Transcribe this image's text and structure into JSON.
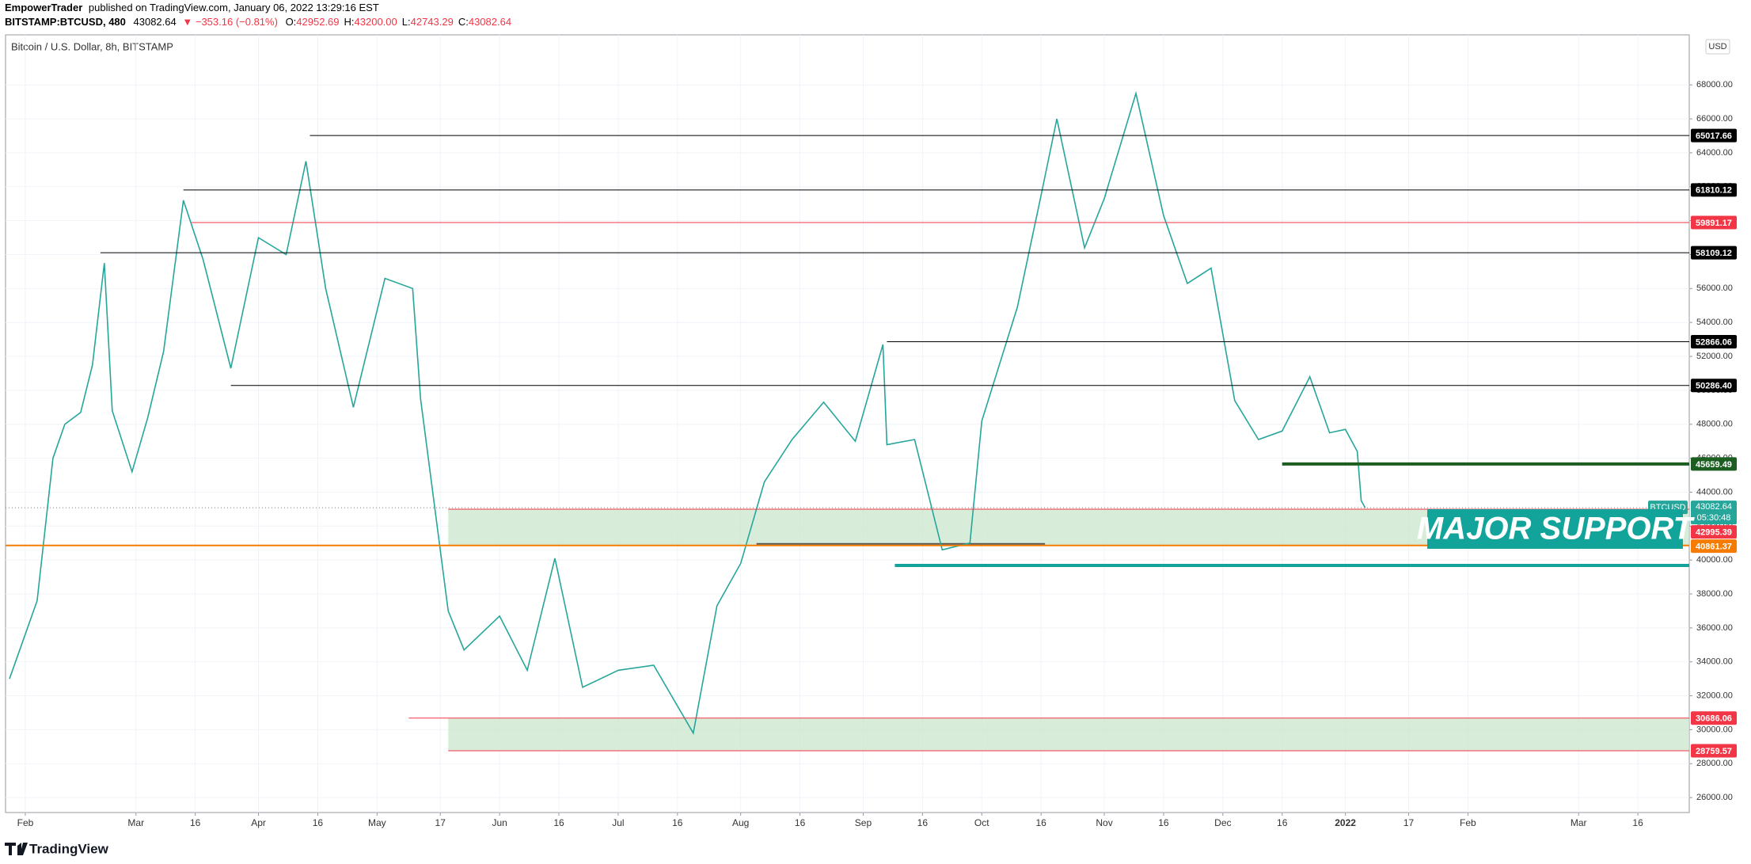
{
  "header": {
    "publisher": "EmpowerTrader",
    "published": "published on TradingView.com, January 06, 2022 13:29:16 EST",
    "symbol": "BITSTAMP:BTCUSD, 480",
    "price": "43082.64",
    "change": "▼ −353.16 (−0.81%)",
    "ohlc": [
      {
        "label": "O:",
        "value": "42952.69"
      },
      {
        "label": "H:",
        "value": "43200.00"
      },
      {
        "label": "L:",
        "value": "42743.29"
      },
      {
        "label": "C:",
        "value": "43082.64"
      }
    ]
  },
  "chart_data": {
    "type": "line",
    "subtitle": "Bitcoin / U.S. Dollar, 8h, BITSTAMP",
    "currency": "USD",
    "color": "#26a69a",
    "x": [
      "2021-01-28",
      "2021-02-04",
      "2021-02-08",
      "2021-02-11",
      "2021-02-15",
      "2021-02-18",
      "2021-02-21",
      "2021-02-23",
      "2021-02-28",
      "2021-03-04",
      "2021-03-08",
      "2021-03-13",
      "2021-03-18",
      "2021-03-25",
      "2021-04-01",
      "2021-04-08",
      "2021-04-13",
      "2021-04-18",
      "2021-04-25",
      "2021-05-03",
      "2021-05-10",
      "2021-05-12",
      "2021-05-19",
      "2021-05-23",
      "2021-06-01",
      "2021-06-08",
      "2021-06-15",
      "2021-06-22",
      "2021-07-01",
      "2021-07-10",
      "2021-07-20",
      "2021-07-26",
      "2021-08-01",
      "2021-08-07",
      "2021-08-14",
      "2021-08-22",
      "2021-08-30",
      "2021-09-06",
      "2021-09-07",
      "2021-09-14",
      "2021-09-21",
      "2021-09-28",
      "2021-10-01",
      "2021-10-10",
      "2021-10-16",
      "2021-10-20",
      "2021-10-27",
      "2021-11-01",
      "2021-11-09",
      "2021-11-16",
      "2021-11-22",
      "2021-11-28",
      "2021-12-04",
      "2021-12-10",
      "2021-12-16",
      "2021-12-23",
      "2021-12-28",
      "2022-01-01",
      "2022-01-04",
      "2022-01-05",
      "2022-01-06"
    ],
    "values": [
      33000,
      37600,
      46000,
      48000,
      48700,
      51500,
      57500,
      48800,
      45200,
      48400,
      52300,
      61200,
      57700,
      51300,
      59000,
      58000,
      63500,
      56000,
      49000,
      56600,
      56000,
      49500,
      37000,
      34700,
      36700,
      33500,
      40100,
      32500,
      33500,
      33800,
      29800,
      37300,
      39800,
      44600,
      47100,
      49300,
      47000,
      52700,
      46800,
      47100,
      40600,
      41000,
      48200,
      54900,
      61500,
      66000,
      58400,
      61300,
      67500,
      60300,
      56300,
      57200,
      49400,
      47100,
      47600,
      50800,
      47500,
      47700,
      46400,
      43500,
      43082.64
    ],
    "xlim": [
      "2021-01-27",
      "2022-03-29"
    ],
    "xticks": [
      {
        "value": "2021-02-01",
        "label": "Feb"
      },
      {
        "value": "2021-03-01",
        "label": "Mar"
      },
      {
        "value": "2021-03-16",
        "label": "16"
      },
      {
        "value": "2021-04-01",
        "label": "Apr"
      },
      {
        "value": "2021-04-16",
        "label": "16"
      },
      {
        "value": "2021-05-01",
        "label": "May"
      },
      {
        "value": "2021-05-17",
        "label": "17"
      },
      {
        "value": "2021-06-01",
        "label": "Jun"
      },
      {
        "value": "2021-06-16",
        "label": "16"
      },
      {
        "value": "2021-07-01",
        "label": "Jul"
      },
      {
        "value": "2021-07-16",
        "label": "16"
      },
      {
        "value": "2021-08-01",
        "label": "Aug"
      },
      {
        "value": "2021-08-16",
        "label": "16"
      },
      {
        "value": "2021-09-01",
        "label": "Sep"
      },
      {
        "value": "2021-09-16",
        "label": "16"
      },
      {
        "value": "2021-10-01",
        "label": "Oct"
      },
      {
        "value": "2021-10-16",
        "label": "16"
      },
      {
        "value": "2021-11-01",
        "label": "Nov"
      },
      {
        "value": "2021-11-16",
        "label": "16"
      },
      {
        "value": "2021-12-01",
        "label": "Dec"
      },
      {
        "value": "2021-12-16",
        "label": "16"
      },
      {
        "value": "2022-01-01",
        "label": "2022"
      },
      {
        "value": "2022-01-17",
        "label": "17"
      },
      {
        "value": "2022-02-01",
        "label": "Feb"
      },
      {
        "value": "2022-03-01",
        "label": "Mar"
      },
      {
        "value": "2022-03-16",
        "label": "16"
      }
    ],
    "ylim": [
      25120,
      70950
    ],
    "yticks": [
      {
        "value": 26000,
        "label": "26000.00"
      },
      {
        "value": 28000,
        "label": "28000.00"
      },
      {
        "value": 30000,
        "label": "30000.00"
      },
      {
        "value": 32000,
        "label": "32000.00"
      },
      {
        "value": 34000,
        "label": "34000.00"
      },
      {
        "value": 36000,
        "label": "36000.00"
      },
      {
        "value": 38000,
        "label": "38000.00"
      },
      {
        "value": 40000,
        "label": "40000.00"
      },
      {
        "value": 42000,
        "label": "42000.00"
      },
      {
        "value": 44000,
        "label": "44000.00"
      },
      {
        "value": 46000,
        "label": "46000.00"
      },
      {
        "value": 48000,
        "label": "48000.00"
      },
      {
        "value": 50000,
        "label": "50000.00"
      },
      {
        "value": 52000,
        "label": "52000.00"
      },
      {
        "value": 54000,
        "label": "54000.00"
      },
      {
        "value": 56000,
        "label": "56000.00"
      },
      {
        "value": 58000,
        "label": "58000.00"
      },
      {
        "value": 60000,
        "label": "60000.00"
      },
      {
        "value": 62000,
        "label": "62000.00"
      },
      {
        "value": 64000,
        "label": "64000.00"
      },
      {
        "value": 66000,
        "label": "66000.00"
      },
      {
        "value": 68000,
        "label": "68000.00"
      }
    ],
    "grid": true,
    "zones": [
      {
        "top": 42995.39,
        "bottom": 40861.37,
        "start": "2021-05-19",
        "color": "#c8e6c9"
      },
      {
        "top": 30686.06,
        "bottom": 28759.57,
        "start": "2021-05-19",
        "color": "#c8e6c9"
      }
    ],
    "levels": [
      {
        "value": 65017.66,
        "label": "65017.66",
        "start": "2021-04-14",
        "color": "#000000",
        "width": 1
      },
      {
        "value": 61810.12,
        "label": "61810.12",
        "start": "2021-03-13",
        "color": "#000000",
        "width": 1
      },
      {
        "value": 59891.17,
        "label": "59891.17",
        "start": "2021-03-15",
        "color": "#f23645",
        "width": 1
      },
      {
        "value": 58109.12,
        "label": "58109.12",
        "start": "2021-02-20",
        "color": "#000000",
        "width": 1
      },
      {
        "value": 52866.06,
        "label": "52866.06",
        "start": "2021-09-07",
        "color": "#000000",
        "width": 1
      },
      {
        "value": 50286.4,
        "label": "50286.40",
        "start": "2021-03-25",
        "color": "#000000",
        "width": 1
      },
      {
        "value": 45659.49,
        "label": "45659.49",
        "start": "2021-12-16",
        "color": "#1b5e20",
        "width": 4
      },
      {
        "value": 42995.39,
        "label": "42995.39",
        "start": "2021-05-19",
        "color": "#f23645",
        "width": 1
      },
      {
        "value": 40861.37,
        "label": "40861.37",
        "start": "2021-01-27",
        "color": "#f57c00",
        "width": 2
      },
      {
        "value": 30686.06,
        "label": "30686.06",
        "start": "2021-05-09",
        "color": "#f23645",
        "width": 1
      },
      {
        "value": 28759.57,
        "label": "28759.57",
        "start": "2021-05-19",
        "color": "#f23645",
        "width": 1
      }
    ],
    "lines": [
      {
        "value": 39680,
        "start": "2021-09-09",
        "color": "#12a39a",
        "width": 4
      },
      {
        "value": 40950,
        "start": "2021-08-05",
        "end": "2021-10-17",
        "color": "#555555",
        "width": 2
      }
    ],
    "last": {
      "value": 43082.64,
      "symbol": "BTCUSD",
      "countdown": "05:30:48",
      "color": "#26a69a"
    },
    "annotation": {
      "text": "MAJOR SUPPORT",
      "color": "#12a39a"
    }
  },
  "footer": "TradingView"
}
